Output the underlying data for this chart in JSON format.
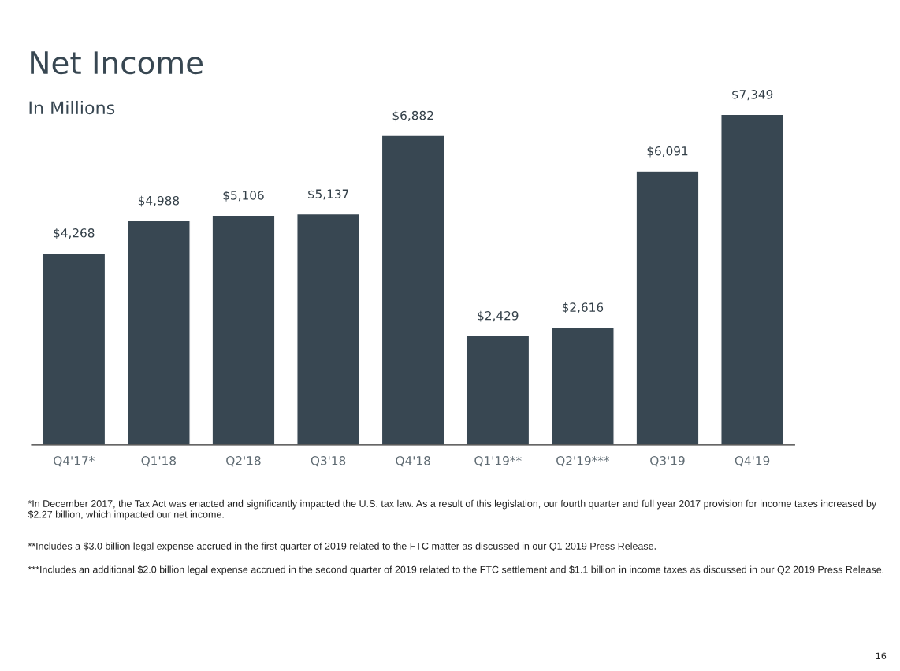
{
  "chart_data": {
    "type": "bar",
    "title": "Net Income",
    "subtitle": "In Millions",
    "categories": [
      "Q4'17*",
      "Q1'18",
      "Q2'18",
      "Q3'18",
      "Q4'18",
      "Q1'19**",
      "Q2'19***",
      "Q3'19",
      "Q4'19"
    ],
    "values": [
      4268,
      4988,
      5106,
      5137,
      6882,
      2429,
      2616,
      6091,
      7349
    ],
    "value_labels": [
      "$4,268",
      "$4,988",
      "$5,106",
      "$5,137",
      "$6,882",
      "$2,429",
      "$2,616",
      "$6,091",
      "$7,349"
    ],
    "color": "#384752",
    "grid": false,
    "legend": false,
    "tick_labels": "x",
    "annotations": [
      "*In December 2017, the Tax Act was enacted and significantly impacted the U.S. tax law. As a result of this legislation, our fourth quarter and full year 2017 provision for income taxes increased by $2.27 billion, which impacted our net income.",
      "**Includes a $3.0 billion legal expense accrued in the first quarter of 2019 related to the FTC matter as discussed in our Q1 2019 Press Release.",
      "***Includes an additional $2.0 billion legal expense accrued in the second quarter of 2019 related to the FTC settlement and $1.1 billion in income taxes as discussed in our Q2 2019 Press Release.",
      "16"
    ]
  }
}
